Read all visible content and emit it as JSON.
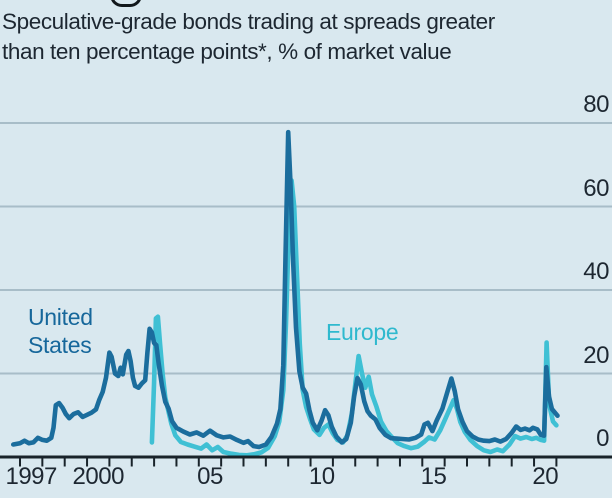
{
  "page": {
    "background": "#d9e8ef"
  },
  "subtitle": {
    "line1": "Speculative-grade bonds trading at spreads greater",
    "line2": "than ten percentage points*, % of market value"
  },
  "chart_data": {
    "type": "line",
    "title": "Speculative-grade bonds trading at spreads greater than ten percentage points*, % of market value",
    "xlabel": "",
    "ylabel": "% of market value",
    "ylim": [
      0,
      80
    ],
    "y_ticks": [
      80,
      60,
      40,
      20,
      0
    ],
    "y_gridlines": [
      80,
      60,
      40,
      20
    ],
    "grid": true,
    "x_range": [
      1996.7,
      2021.1
    ],
    "x_tick_years": [
      1997,
      1998,
      1999,
      2000,
      2001,
      2002,
      2003,
      2004,
      2005,
      2006,
      2007,
      2008,
      2009,
      2010,
      2011,
      2012,
      2013,
      2014,
      2015,
      2016,
      2017,
      2018,
      2019,
      2020,
      2021
    ],
    "x_axis_labels": [
      {
        "year": 1997,
        "label": "1997"
      },
      {
        "year": 2000,
        "label": "2000"
      },
      {
        "year": 2005,
        "label": "05"
      },
      {
        "year": 2010,
        "label": "10"
      },
      {
        "year": 2015,
        "label": "15"
      },
      {
        "year": 2020,
        "label": "20"
      }
    ],
    "legend_position": "inline-labels",
    "axis_color": "#19232a",
    "gridline_color": "#a8bdc8",
    "series": [
      {
        "name": "United States",
        "color": "#1b6d9d",
        "points": [
          [
            1996.7,
            3.0
          ],
          [
            1997.0,
            3.3
          ],
          [
            1997.2,
            3.9
          ],
          [
            1997.4,
            3.3
          ],
          [
            1997.6,
            3.5
          ],
          [
            1997.8,
            4.6
          ],
          [
            1998.0,
            4.1
          ],
          [
            1998.2,
            3.9
          ],
          [
            1998.4,
            4.6
          ],
          [
            1998.5,
            7.0
          ],
          [
            1998.6,
            12.4
          ],
          [
            1998.75,
            12.9
          ],
          [
            1998.9,
            11.8
          ],
          [
            1999.05,
            10.3
          ],
          [
            1999.2,
            9.3
          ],
          [
            1999.4,
            10.3
          ],
          [
            1999.6,
            10.7
          ],
          [
            1999.8,
            9.6
          ],
          [
            2000.0,
            10.1
          ],
          [
            2000.2,
            10.6
          ],
          [
            2000.4,
            11.4
          ],
          [
            2000.55,
            13.7
          ],
          [
            2000.7,
            15.6
          ],
          [
            2000.85,
            19.0
          ],
          [
            2001.0,
            25.0
          ],
          [
            2001.1,
            24.0
          ],
          [
            2001.25,
            20.0
          ],
          [
            2001.4,
            19.4
          ],
          [
            2001.5,
            21.4
          ],
          [
            2001.6,
            19.8
          ],
          [
            2001.75,
            24.5
          ],
          [
            2001.85,
            25.4
          ],
          [
            2001.95,
            23.0
          ],
          [
            2002.05,
            19.0
          ],
          [
            2002.15,
            17.0
          ],
          [
            2002.3,
            16.6
          ],
          [
            2002.45,
            17.6
          ],
          [
            2002.6,
            18.4
          ],
          [
            2002.7,
            25.0
          ],
          [
            2002.8,
            30.7
          ],
          [
            2002.9,
            29.8
          ],
          [
            2003.0,
            27.3
          ],
          [
            2003.1,
            26.8
          ],
          [
            2003.2,
            22.5
          ],
          [
            2003.35,
            17.2
          ],
          [
            2003.5,
            13.2
          ],
          [
            2003.65,
            11.6
          ],
          [
            2003.8,
            8.6
          ],
          [
            2004.0,
            7.0
          ],
          [
            2004.3,
            6.1
          ],
          [
            2004.6,
            5.4
          ],
          [
            2004.9,
            5.9
          ],
          [
            2005.2,
            5.1
          ],
          [
            2005.5,
            6.3
          ],
          [
            2005.8,
            5.2
          ],
          [
            2006.1,
            4.7
          ],
          [
            2006.4,
            4.9
          ],
          [
            2006.7,
            4.1
          ],
          [
            2007.0,
            3.4
          ],
          [
            2007.2,
            3.8
          ],
          [
            2007.45,
            2.6
          ],
          [
            2007.7,
            2.4
          ],
          [
            2008.0,
            3.0
          ],
          [
            2008.25,
            4.8
          ],
          [
            2008.5,
            8.0
          ],
          [
            2008.65,
            11.5
          ],
          [
            2008.78,
            22.0
          ],
          [
            2008.88,
            48.0
          ],
          [
            2009.0,
            77.8
          ],
          [
            2009.1,
            66.0
          ],
          [
            2009.22,
            47.0
          ],
          [
            2009.35,
            31.0
          ],
          [
            2009.5,
            20.5
          ],
          [
            2009.65,
            16.6
          ],
          [
            2009.8,
            15.2
          ],
          [
            2009.95,
            11.2
          ],
          [
            2010.1,
            8.2
          ],
          [
            2010.3,
            6.4
          ],
          [
            2010.5,
            8.8
          ],
          [
            2010.65,
            11.2
          ],
          [
            2010.8,
            10.0
          ],
          [
            2010.95,
            7.2
          ],
          [
            2011.15,
            4.9
          ],
          [
            2011.4,
            3.5
          ],
          [
            2011.6,
            4.3
          ],
          [
            2011.8,
            8.2
          ],
          [
            2011.95,
            14.5
          ],
          [
            2012.1,
            18.9
          ],
          [
            2012.25,
            17.4
          ],
          [
            2012.4,
            13.4
          ],
          [
            2012.55,
            11.0
          ],
          [
            2012.7,
            9.9
          ],
          [
            2012.9,
            9.0
          ],
          [
            2013.1,
            6.9
          ],
          [
            2013.35,
            5.3
          ],
          [
            2013.6,
            4.5
          ],
          [
            2013.85,
            4.4
          ],
          [
            2014.1,
            4.3
          ],
          [
            2014.4,
            4.2
          ],
          [
            2014.7,
            4.6
          ],
          [
            2014.95,
            5.4
          ],
          [
            2015.1,
            7.8
          ],
          [
            2015.25,
            8.2
          ],
          [
            2015.45,
            6.2
          ],
          [
            2015.65,
            8.8
          ],
          [
            2015.9,
            11.6
          ],
          [
            2016.1,
            15.2
          ],
          [
            2016.3,
            18.8
          ],
          [
            2016.45,
            15.8
          ],
          [
            2016.6,
            11.4
          ],
          [
            2016.8,
            8.4
          ],
          [
            2017.0,
            6.2
          ],
          [
            2017.25,
            4.9
          ],
          [
            2017.5,
            4.2
          ],
          [
            2017.75,
            3.9
          ],
          [
            2018.0,
            3.8
          ],
          [
            2018.25,
            4.2
          ],
          [
            2018.5,
            3.7
          ],
          [
            2018.75,
            4.3
          ],
          [
            2019.0,
            5.8
          ],
          [
            2019.2,
            7.3
          ],
          [
            2019.4,
            6.5
          ],
          [
            2019.6,
            6.8
          ],
          [
            2019.8,
            6.4
          ],
          [
            2019.95,
            7.0
          ],
          [
            2020.15,
            6.6
          ],
          [
            2020.3,
            5.3
          ],
          [
            2020.45,
            5.1
          ],
          [
            2020.55,
            21.5
          ],
          [
            2020.67,
            14.5
          ],
          [
            2020.8,
            11.5
          ],
          [
            2021.05,
            9.9
          ]
        ]
      },
      {
        "name": "Europe",
        "color": "#3fc0d4",
        "points": [
          [
            2002.9,
            3.5
          ],
          [
            2003.0,
            18.0
          ],
          [
            2003.08,
            33.2
          ],
          [
            2003.17,
            33.6
          ],
          [
            2003.27,
            27.0
          ],
          [
            2003.38,
            20.0
          ],
          [
            2003.5,
            14.2
          ],
          [
            2003.62,
            11.4
          ],
          [
            2003.77,
            8.0
          ],
          [
            2003.95,
            5.2
          ],
          [
            2004.2,
            3.6
          ],
          [
            2004.5,
            3.0
          ],
          [
            2004.8,
            2.5
          ],
          [
            2005.1,
            2.0
          ],
          [
            2005.35,
            3.0
          ],
          [
            2005.6,
            1.6
          ],
          [
            2005.85,
            2.4
          ],
          [
            2006.1,
            1.2
          ],
          [
            2006.45,
            0.8
          ],
          [
            2006.8,
            0.5
          ],
          [
            2007.15,
            0.4
          ],
          [
            2007.5,
            0.7
          ],
          [
            2007.8,
            1.1
          ],
          [
            2008.1,
            2.2
          ],
          [
            2008.4,
            5.0
          ],
          [
            2008.6,
            8.5
          ],
          [
            2008.78,
            16.0
          ],
          [
            2008.9,
            32.0
          ],
          [
            2009.05,
            58.0
          ],
          [
            2009.15,
            66.2
          ],
          [
            2009.27,
            60.0
          ],
          [
            2009.4,
            43.0
          ],
          [
            2009.52,
            27.0
          ],
          [
            2009.65,
            16.0
          ],
          [
            2009.8,
            12.0
          ],
          [
            2009.97,
            9.2
          ],
          [
            2010.15,
            6.6
          ],
          [
            2010.4,
            5.3
          ],
          [
            2010.6,
            7.0
          ],
          [
            2010.8,
            7.8
          ],
          [
            2011.0,
            5.6
          ],
          [
            2011.2,
            4.1
          ],
          [
            2011.45,
            3.5
          ],
          [
            2011.65,
            5.2
          ],
          [
            2011.85,
            10.5
          ],
          [
            2012.0,
            17.5
          ],
          [
            2012.15,
            24.2
          ],
          [
            2012.3,
            20.0
          ],
          [
            2012.45,
            16.6
          ],
          [
            2012.6,
            19.2
          ],
          [
            2012.75,
            15.0
          ],
          [
            2012.95,
            12.0
          ],
          [
            2013.15,
            8.5
          ],
          [
            2013.4,
            6.2
          ],
          [
            2013.65,
            4.7
          ],
          [
            2013.9,
            3.3
          ],
          [
            2014.2,
            2.6
          ],
          [
            2014.5,
            2.1
          ],
          [
            2014.8,
            2.5
          ],
          [
            2015.1,
            3.7
          ],
          [
            2015.3,
            4.7
          ],
          [
            2015.55,
            4.2
          ],
          [
            2015.8,
            6.4
          ],
          [
            2016.05,
            9.4
          ],
          [
            2016.4,
            13.6
          ],
          [
            2016.55,
            11.6
          ],
          [
            2016.7,
            8.4
          ],
          [
            2016.9,
            6.0
          ],
          [
            2017.15,
            4.1
          ],
          [
            2017.45,
            2.6
          ],
          [
            2017.75,
            1.6
          ],
          [
            2018.05,
            1.2
          ],
          [
            2018.35,
            1.8
          ],
          [
            2018.6,
            1.4
          ],
          [
            2018.9,
            3.0
          ],
          [
            2019.15,
            5.0
          ],
          [
            2019.4,
            4.4
          ],
          [
            2019.65,
            4.8
          ],
          [
            2019.9,
            4.3
          ],
          [
            2020.1,
            4.6
          ],
          [
            2020.3,
            4.1
          ],
          [
            2020.45,
            3.9
          ],
          [
            2020.56,
            27.4
          ],
          [
            2020.68,
            12.5
          ],
          [
            2020.85,
            8.5
          ],
          [
            2021.0,
            7.6
          ]
        ]
      }
    ]
  }
}
